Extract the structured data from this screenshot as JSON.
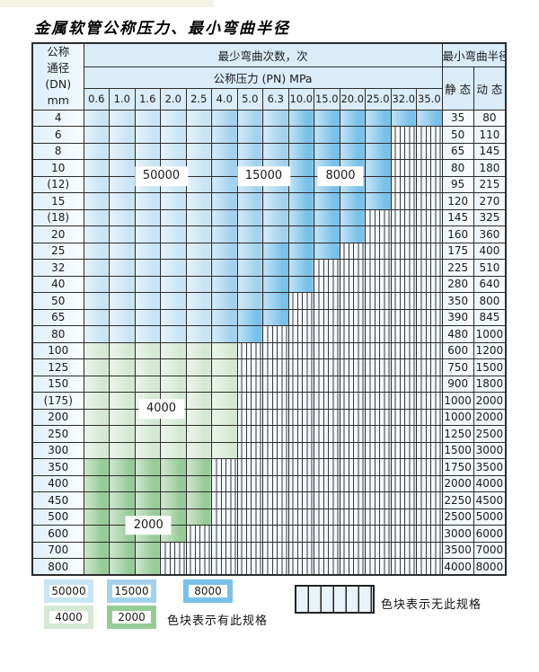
{
  "title": "金属软管公称压力、最小弯曲半径",
  "colors": {
    "zone_50000": "#c9e4f5",
    "zone_15000": "#a4d2ee",
    "zone_8000": "#7ac1e9",
    "zone_4000": "#d5e8d4",
    "zone_2000": "#97cb98",
    "header_bg": "#daecf8",
    "grid": "#2c2c2c",
    "hatch_bg": "#f3f8fd"
  },
  "header": {
    "dn_lines": [
      "公称",
      "通径",
      "(DN)",
      "mm"
    ],
    "bend_times_label": "最少弯曲次数，次",
    "pressure_label": "公称压力 (PN) MPa",
    "pressures": [
      "0.6",
      "1.0",
      "1.6",
      "2.0",
      "2.5",
      "4.0",
      "5.0",
      "6.3",
      "10.0",
      "15.0",
      "20.0",
      "25.0",
      "32.0",
      "35.0"
    ],
    "radius_label": "最小弯曲半径",
    "static_label": "静 态",
    "dynamic_label": "动 态"
  },
  "rows": [
    {
      "dn": "4",
      "segments": [
        [
          "50000",
          5
        ],
        [
          "15000",
          3
        ],
        [
          "8000",
          6
        ]
      ],
      "static": "35",
      "dynamic": "80"
    },
    {
      "dn": "6",
      "segments": [
        [
          "50000",
          5
        ],
        [
          "15000",
          3
        ],
        [
          "8000",
          4
        ]
      ],
      "static": "50",
      "dynamic": "110"
    },
    {
      "dn": "8",
      "segments": [
        [
          "50000",
          5
        ],
        [
          "15000",
          3
        ],
        [
          "8000",
          4
        ]
      ],
      "static": "65",
      "dynamic": "145"
    },
    {
      "dn": "10",
      "segments": [
        [
          "50000",
          5
        ],
        [
          "15000",
          3
        ],
        [
          "8000",
          4
        ]
      ],
      "static": "80",
      "dynamic": "180"
    },
    {
      "dn": "(12)",
      "segments": [
        [
          "50000",
          5
        ],
        [
          "15000",
          3
        ],
        [
          "8000",
          4
        ]
      ],
      "static": "95",
      "dynamic": "215"
    },
    {
      "dn": "15",
      "segments": [
        [
          "50000",
          5
        ],
        [
          "15000",
          3
        ],
        [
          "8000",
          4
        ]
      ],
      "static": "120",
      "dynamic": "270"
    },
    {
      "dn": "(18)",
      "segments": [
        [
          "50000",
          5
        ],
        [
          "15000",
          3
        ],
        [
          "8000",
          3
        ]
      ],
      "static": "145",
      "dynamic": "325"
    },
    {
      "dn": "20",
      "segments": [
        [
          "50000",
          5
        ],
        [
          "15000",
          3
        ],
        [
          "8000",
          3
        ]
      ],
      "static": "160",
      "dynamic": "360"
    },
    {
      "dn": "25",
      "segments": [
        [
          "50000",
          5
        ],
        [
          "15000",
          2
        ],
        [
          "8000",
          3
        ]
      ],
      "static": "175",
      "dynamic": "400"
    },
    {
      "dn": "32",
      "segments": [
        [
          "50000",
          5
        ],
        [
          "15000",
          2
        ],
        [
          "8000",
          2
        ]
      ],
      "static": "225",
      "dynamic": "510"
    },
    {
      "dn": "40",
      "segments": [
        [
          "50000",
          5
        ],
        [
          "15000",
          2
        ],
        [
          "8000",
          2
        ]
      ],
      "static": "280",
      "dynamic": "640"
    },
    {
      "dn": "50",
      "segments": [
        [
          "50000",
          5
        ],
        [
          "15000",
          2
        ],
        [
          "8000",
          1
        ]
      ],
      "static": "350",
      "dynamic": "800"
    },
    {
      "dn": "65",
      "segments": [
        [
          "50000",
          5
        ],
        [
          "15000",
          1
        ],
        [
          "8000",
          2
        ]
      ],
      "static": "390",
      "dynamic": "845"
    },
    {
      "dn": "80",
      "segments": [
        [
          "50000",
          5
        ],
        [
          "15000",
          1
        ],
        [
          "8000",
          1
        ]
      ],
      "static": "480",
      "dynamic": "1000"
    },
    {
      "dn": "100",
      "segments": [
        [
          "4000",
          6
        ]
      ],
      "static": "600",
      "dynamic": "1200"
    },
    {
      "dn": "125",
      "segments": [
        [
          "4000",
          6
        ]
      ],
      "static": "750",
      "dynamic": "1500"
    },
    {
      "dn": "150",
      "segments": [
        [
          "4000",
          6
        ]
      ],
      "static": "900",
      "dynamic": "1800"
    },
    {
      "dn": "(175)",
      "segments": [
        [
          "4000",
          6
        ]
      ],
      "static": "1000",
      "dynamic": "2000"
    },
    {
      "dn": "200",
      "segments": [
        [
          "4000",
          6
        ]
      ],
      "static": "1000",
      "dynamic": "2000"
    },
    {
      "dn": "250",
      "segments": [
        [
          "4000",
          6
        ]
      ],
      "static": "1250",
      "dynamic": "2500"
    },
    {
      "dn": "300",
      "segments": [
        [
          "4000",
          6
        ]
      ],
      "static": "1500",
      "dynamic": "3000"
    },
    {
      "dn": "350",
      "segments": [
        [
          "2000",
          5
        ]
      ],
      "static": "1750",
      "dynamic": "3500"
    },
    {
      "dn": "400",
      "segments": [
        [
          "2000",
          5
        ]
      ],
      "static": "2000",
      "dynamic": "4000"
    },
    {
      "dn": "450",
      "segments": [
        [
          "2000",
          5
        ]
      ],
      "static": "2250",
      "dynamic": "4500"
    },
    {
      "dn": "500",
      "segments": [
        [
          "2000",
          5
        ]
      ],
      "static": "2500",
      "dynamic": "5000"
    },
    {
      "dn": "600",
      "segments": [
        [
          "2000",
          4
        ]
      ],
      "static": "3000",
      "dynamic": "6000"
    },
    {
      "dn": "700",
      "segments": [
        [
          "2000",
          3
        ]
      ],
      "static": "3500",
      "dynamic": "7000"
    },
    {
      "dn": "800",
      "segments": [
        [
          "2000",
          3
        ]
      ],
      "static": "4000",
      "dynamic": "8000"
    }
  ],
  "overlays": [
    {
      "label": "50000",
      "col": 3,
      "row": 4
    },
    {
      "label": "15000",
      "col": 7,
      "row": 4
    },
    {
      "label": "8000",
      "col": 10,
      "row": 4
    },
    {
      "label": "4000",
      "col": 3,
      "row": 18
    },
    {
      "label": "2000",
      "col": 2.5,
      "row": 25
    }
  ],
  "legend": {
    "swatches": [
      {
        "label": "50000",
        "zone": "50000"
      },
      {
        "label": "15000",
        "zone": "15000"
      },
      {
        "label": "8000",
        "zone": "8000"
      },
      {
        "label": "4000",
        "zone": "4000"
      },
      {
        "label": "2000",
        "zone": "2000"
      }
    ],
    "has_spec_text": "色块表示有此规格",
    "no_spec_text": "色块表示无此规格"
  }
}
